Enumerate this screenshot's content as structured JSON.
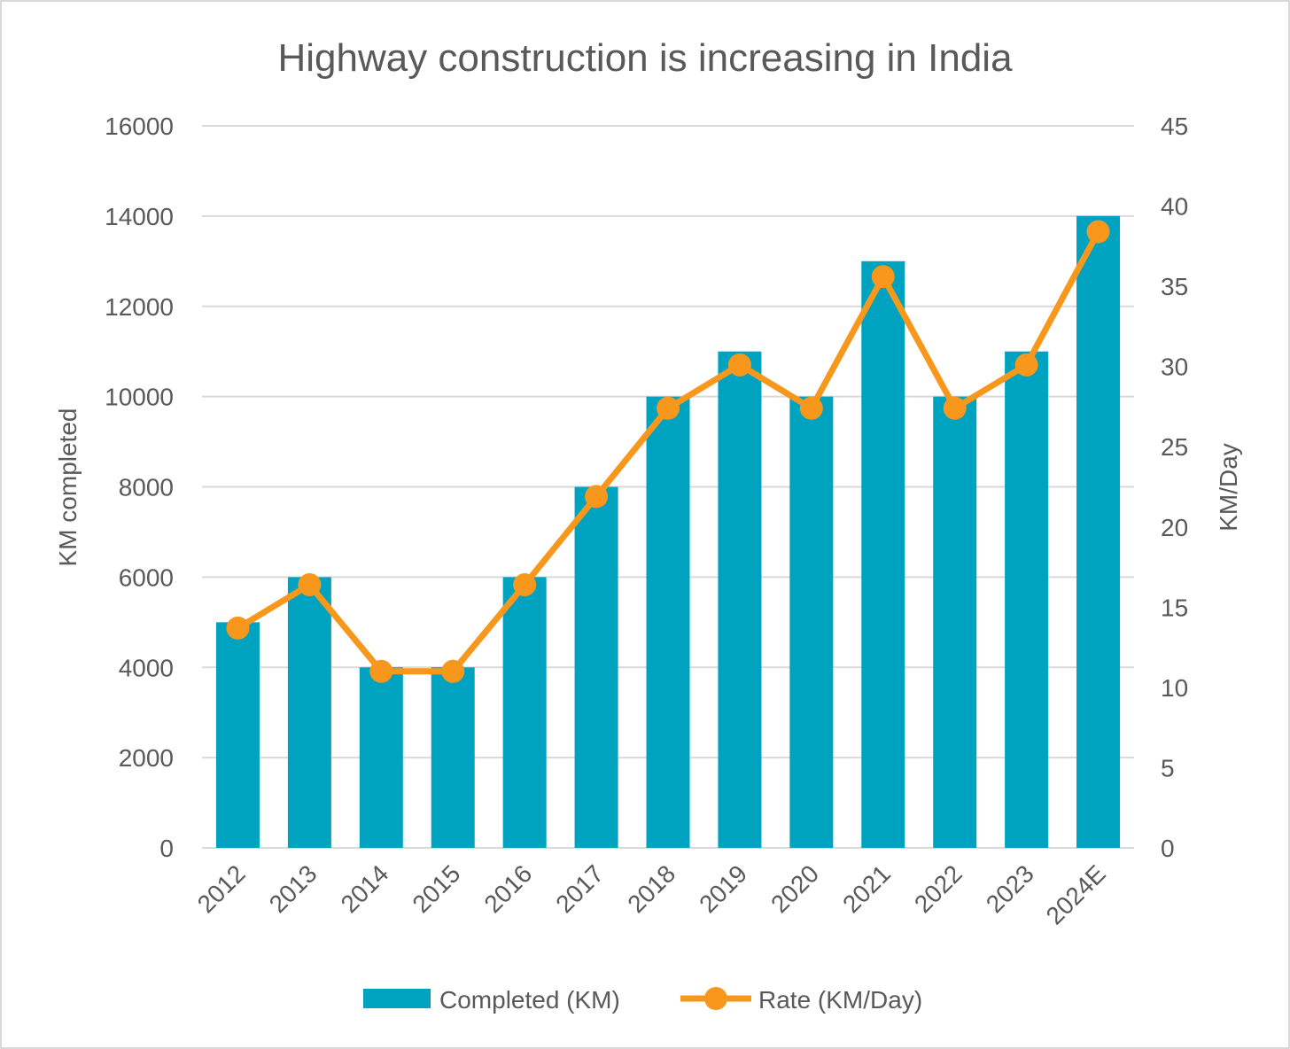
{
  "chart_data": {
    "type": "bar",
    "title": "Highway construction is increasing in India",
    "categories": [
      "2012",
      "2013",
      "2014",
      "2015",
      "2016",
      "2017",
      "2018",
      "2019",
      "2020",
      "2021",
      "2022",
      "2023",
      "2024E"
    ],
    "series": [
      {
        "name": "Completed (KM)",
        "type": "bar",
        "axis": "left",
        "color": "#00a3bf",
        "values": [
          5000,
          6000,
          4000,
          4000,
          6000,
          8000,
          10000,
          11000,
          10000,
          13000,
          10000,
          11000,
          14000
        ]
      },
      {
        "name": "Rate (KM/Day)",
        "type": "line",
        "axis": "right",
        "color": "#f7981d",
        "values": [
          13.7,
          16.4,
          11.0,
          11.0,
          16.4,
          21.9,
          27.4,
          30.1,
          27.4,
          35.6,
          27.4,
          30.1,
          38.4
        ]
      }
    ],
    "y_left": {
      "label": "KM completed",
      "ylim": [
        0,
        16000
      ],
      "ticks": [
        0,
        2000,
        4000,
        6000,
        8000,
        10000,
        12000,
        14000,
        16000
      ]
    },
    "y_right": {
      "label": "KM/Day",
      "ylim": [
        0,
        45
      ],
      "ticks": [
        0,
        5,
        10,
        15,
        20,
        25,
        30,
        35,
        40,
        45
      ]
    },
    "grid": true,
    "legend_position": "bottom"
  }
}
